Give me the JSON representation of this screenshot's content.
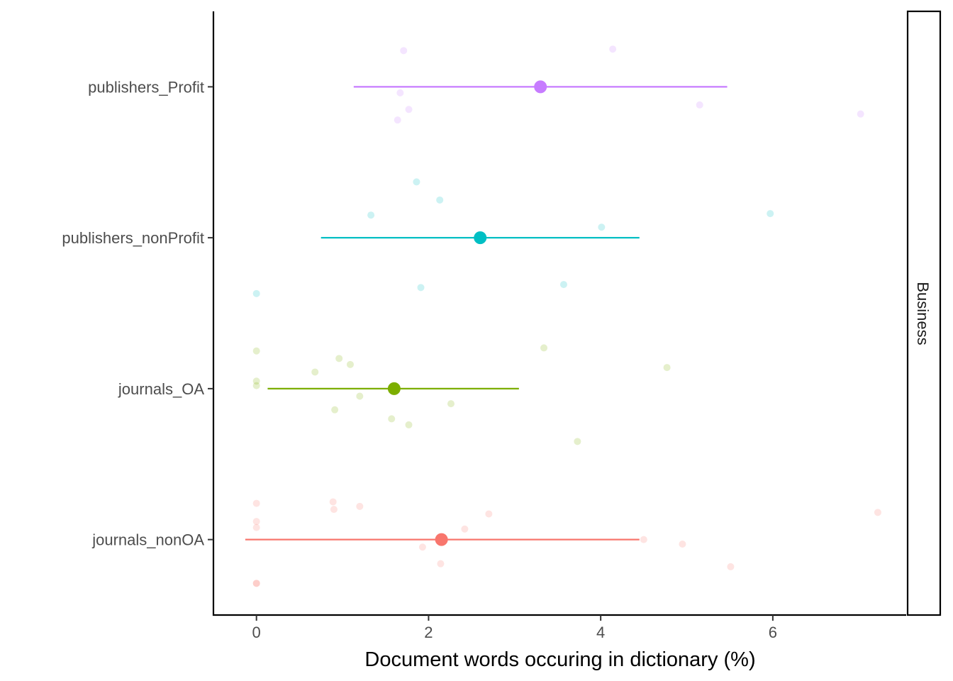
{
  "chart_data": {
    "type": "scatter",
    "title": "",
    "xlabel": "Document words occuring in dictionary (%)",
    "ylabel": "",
    "xlim": [
      -0.5,
      7.55
    ],
    "x_ticks": [
      0,
      2,
      4,
      6
    ],
    "x_tick_labels": [
      "0",
      "2",
      "4",
      "6"
    ],
    "categories": [
      "publishers_Profit",
      "publishers_nonProfit",
      "journals_OA",
      "journals_nonOA"
    ],
    "facet_label": "Business",
    "grid": false,
    "legend": "none",
    "series": [
      {
        "category": "publishers_Profit",
        "color": "#C77CFF",
        "mean": 3.3,
        "ci": [
          1.13,
          5.47
        ],
        "points": [
          {
            "x": 1.71,
            "jitter": 0.24
          },
          {
            "x": 4.14,
            "jitter": 0.25
          },
          {
            "x": 1.67,
            "jitter": -0.04
          },
          {
            "x": 1.77,
            "jitter": -0.15
          },
          {
            "x": 1.64,
            "jitter": -0.22
          },
          {
            "x": 5.15,
            "jitter": -0.12
          },
          {
            "x": 7.02,
            "jitter": -0.18
          }
        ]
      },
      {
        "category": "publishers_nonProfit",
        "color": "#00BFC4",
        "mean": 2.6,
        "ci": [
          0.75,
          4.45
        ],
        "points": [
          {
            "x": 1.86,
            "jitter": 0.37
          },
          {
            "x": 2.13,
            "jitter": 0.25
          },
          {
            "x": 1.33,
            "jitter": 0.15
          },
          {
            "x": 4.01,
            "jitter": 0.07
          },
          {
            "x": 5.97,
            "jitter": 0.16
          },
          {
            "x": 0.0,
            "jitter": -0.37
          },
          {
            "x": 1.91,
            "jitter": -0.33
          },
          {
            "x": 3.57,
            "jitter": -0.31
          }
        ]
      },
      {
        "category": "journals_OA",
        "color": "#7CAE00",
        "mean": 1.6,
        "ci": [
          0.13,
          3.05
        ],
        "points": [
          {
            "x": 0.0,
            "jitter": 0.25
          },
          {
            "x": 3.34,
            "jitter": 0.27
          },
          {
            "x": 0.96,
            "jitter": 0.2
          },
          {
            "x": 1.09,
            "jitter": 0.16
          },
          {
            "x": 0.68,
            "jitter": 0.11
          },
          {
            "x": 4.77,
            "jitter": 0.14
          },
          {
            "x": 0.0,
            "jitter": 0.05
          },
          {
            "x": 0.0,
            "jitter": 0.02
          },
          {
            "x": 1.2,
            "jitter": -0.05
          },
          {
            "x": 2.26,
            "jitter": -0.1
          },
          {
            "x": 0.91,
            "jitter": -0.14
          },
          {
            "x": 1.57,
            "jitter": -0.2
          },
          {
            "x": 1.77,
            "jitter": -0.24
          },
          {
            "x": 3.73,
            "jitter": -0.35
          }
        ]
      },
      {
        "category": "journals_nonOA",
        "color": "#F8766D",
        "mean": 2.15,
        "ci": [
          -0.13,
          4.45
        ],
        "points": [
          {
            "x": 0.0,
            "jitter": 0.24
          },
          {
            "x": 0.89,
            "jitter": 0.25
          },
          {
            "x": 0.9,
            "jitter": 0.2
          },
          {
            "x": 1.2,
            "jitter": 0.22
          },
          {
            "x": 2.7,
            "jitter": 0.17
          },
          {
            "x": 7.22,
            "jitter": 0.18
          },
          {
            "x": 0.0,
            "jitter": 0.12
          },
          {
            "x": 0.0,
            "jitter": 0.08
          },
          {
            "x": 2.42,
            "jitter": 0.07
          },
          {
            "x": 4.5,
            "jitter": 0.0
          },
          {
            "x": 4.95,
            "jitter": -0.03
          },
          {
            "x": 1.93,
            "jitter": -0.05
          },
          {
            "x": 2.14,
            "jitter": -0.16
          },
          {
            "x": 5.51,
            "jitter": -0.18
          },
          {
            "x": 0.0,
            "jitter": -0.29
          },
          {
            "x": 0.0,
            "jitter": -0.29
          }
        ]
      }
    ]
  }
}
